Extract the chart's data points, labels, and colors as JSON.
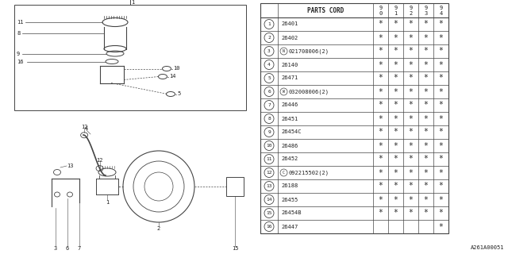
{
  "bg_color": "#ffffff",
  "line_color": "#444444",
  "text_color": "#222222",
  "title_ref": "A261A00051",
  "table_header": "PARTS CORD",
  "year_cols": [
    "9\n0",
    "9\n1",
    "9\n2",
    "9\n3",
    "9\n4"
  ],
  "parts": [
    {
      "num": 1,
      "code": "26401",
      "marks": [
        1,
        1,
        1,
        1,
        1
      ]
    },
    {
      "num": 2,
      "code": "26402",
      "marks": [
        1,
        1,
        1,
        1,
        1
      ]
    },
    {
      "num": 3,
      "code": "N021708006(2)",
      "marks": [
        1,
        1,
        1,
        1,
        1
      ]
    },
    {
      "num": 4,
      "code": "26140",
      "marks": [
        1,
        1,
        1,
        1,
        1
      ]
    },
    {
      "num": 5,
      "code": "26471",
      "marks": [
        1,
        1,
        1,
        1,
        1
      ]
    },
    {
      "num": 6,
      "code": "W032008006(2)",
      "marks": [
        1,
        1,
        1,
        1,
        1
      ]
    },
    {
      "num": 7,
      "code": "26446",
      "marks": [
        1,
        1,
        1,
        1,
        1
      ]
    },
    {
      "num": 8,
      "code": "26451",
      "marks": [
        1,
        1,
        1,
        1,
        1
      ]
    },
    {
      "num": 9,
      "code": "26454C",
      "marks": [
        1,
        1,
        1,
        1,
        1
      ]
    },
    {
      "num": 10,
      "code": "26486",
      "marks": [
        1,
        1,
        1,
        1,
        1
      ]
    },
    {
      "num": 11,
      "code": "26452",
      "marks": [
        1,
        1,
        1,
        1,
        1
      ]
    },
    {
      "num": 12,
      "code": "C092215502(2)",
      "marks": [
        1,
        1,
        1,
        1,
        1
      ]
    },
    {
      "num": 13,
      "code": "26188",
      "marks": [
        1,
        1,
        1,
        1,
        1
      ]
    },
    {
      "num": 14,
      "code": "26455",
      "marks": [
        1,
        1,
        1,
        1,
        1
      ]
    },
    {
      "num": 15,
      "code": "26454B",
      "marks": [
        1,
        1,
        1,
        1,
        1
      ]
    },
    {
      "num": 16,
      "code": "26447",
      "marks": [
        0,
        0,
        0,
        0,
        1
      ]
    }
  ]
}
